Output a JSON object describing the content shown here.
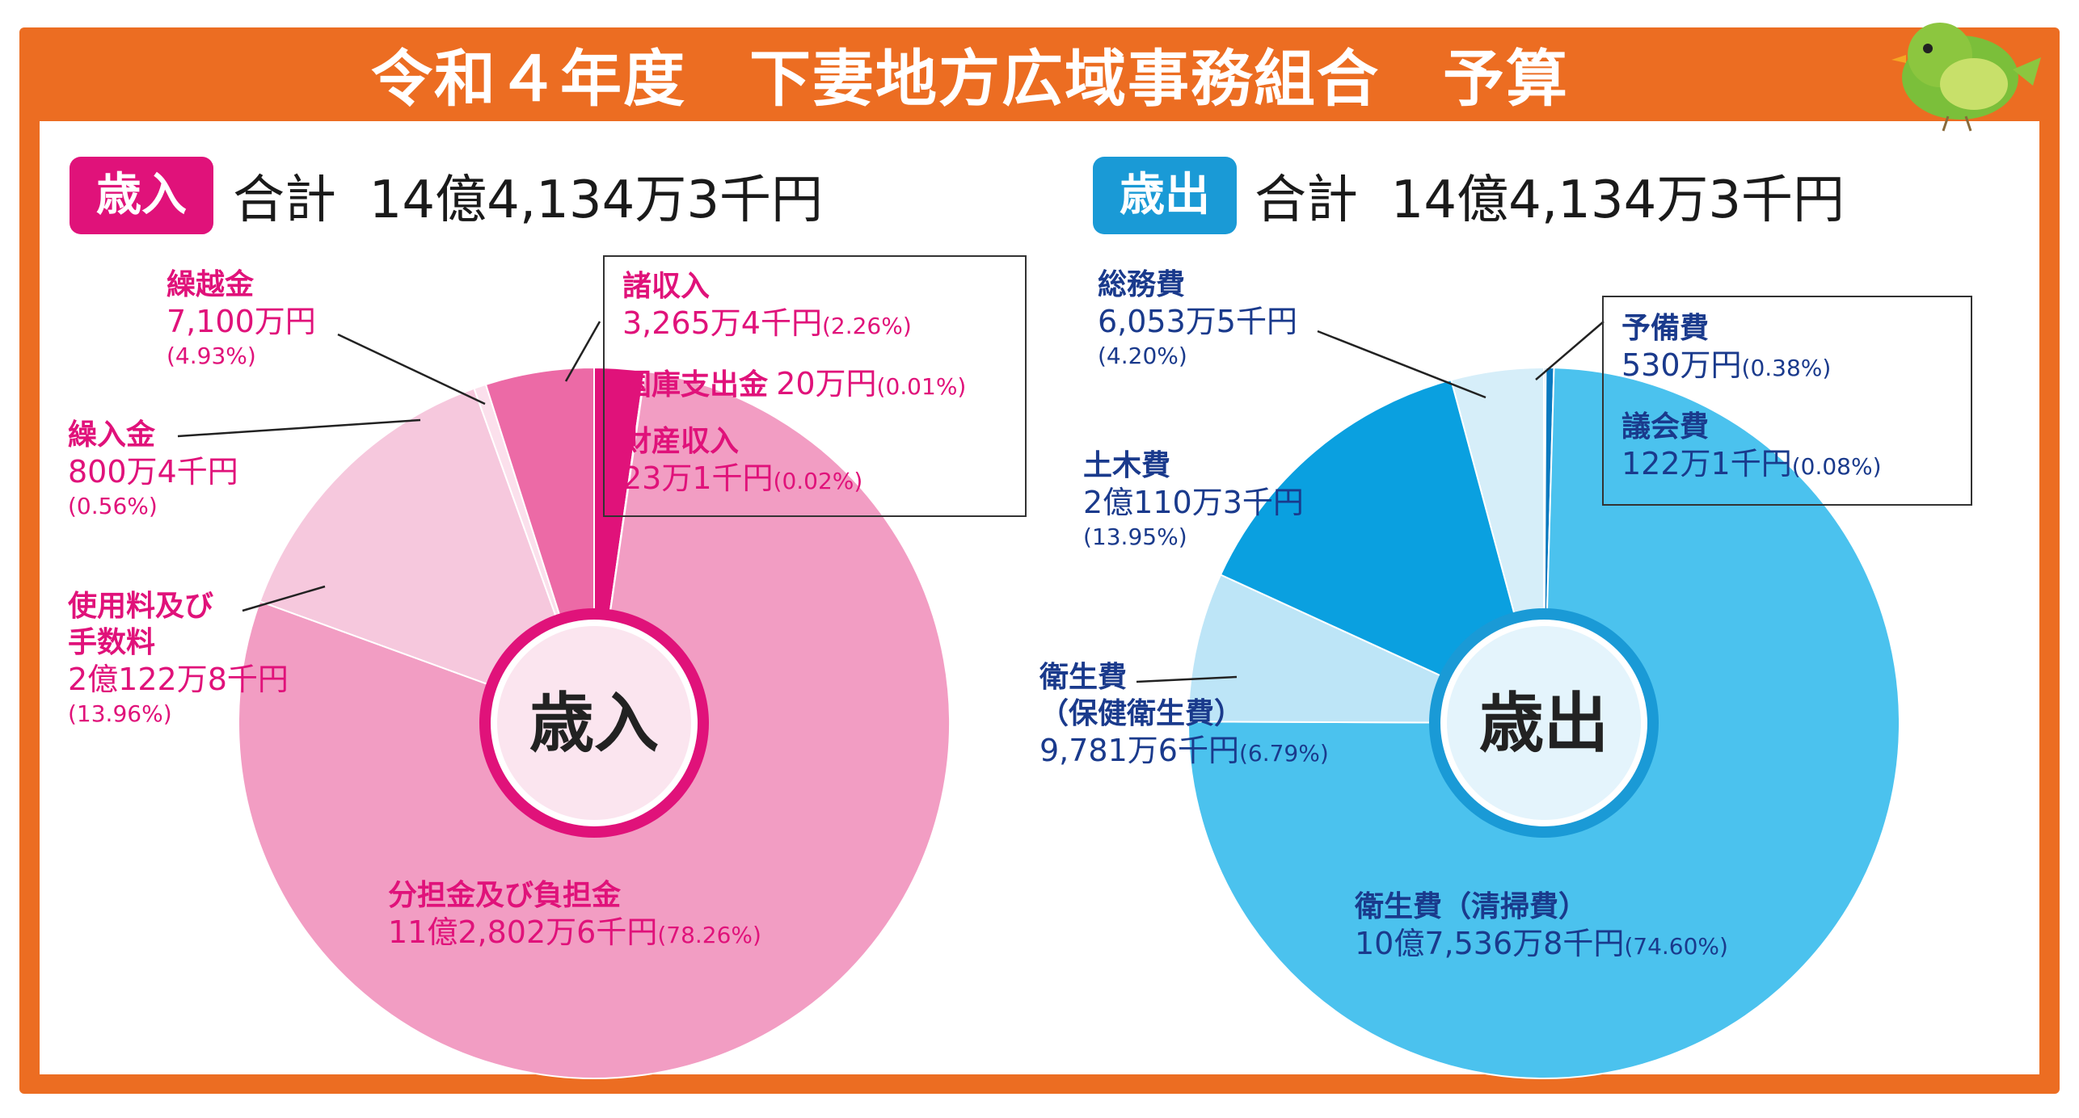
{
  "title": "令和４年度　下妻地方広域事務組合　予算",
  "colors": {
    "frame": "#ec6d22",
    "revenue_accent": "#e0127a",
    "expense_accent": "#1a9ad6"
  },
  "revenue": {
    "tag": "歳入",
    "total": "合計  14億4,134万3千円",
    "center": "歳入",
    "labels": {
      "kurikoshi": {
        "name": "繰越金",
        "value": "7,100万円",
        "pct": "(4.93%)"
      },
      "kurinyu": {
        "name": "繰入金",
        "value": "800万4千円",
        "pct": "(0.56%)"
      },
      "shiyoryo": {
        "name": "使用料及び",
        "name2": "手数料",
        "value": "2億122万8千円",
        "pct": "(13.96%)"
      },
      "shoshunyu": {
        "name": "諸収入",
        "value": "3,265万4千円",
        "pct": "(2.26%)"
      },
      "kokko": {
        "name": "国庫支出金",
        "value": "20万円",
        "pct": "(0.01%)"
      },
      "zaisan": {
        "name": "財産収入",
        "value": "23万1千円",
        "pct": "(0.02%)"
      },
      "buntan": {
        "name": "分担金及び負担金",
        "value": "11億2,802万6千円",
        "pct": "(78.26%)"
      }
    }
  },
  "expense": {
    "tag": "歳出",
    "total": "合計  14億4,134万3千円",
    "center": "歳出",
    "labels": {
      "somu": {
        "name": "総務費",
        "value": "6,053万5千円",
        "pct": "(4.20%)"
      },
      "yobi": {
        "name": "予備費",
        "value": "530万円",
        "pct": "(0.38%)"
      },
      "gikai": {
        "name": "議会費",
        "value": "122万1千円",
        "pct": "(0.08%)"
      },
      "doboku": {
        "name": "土木費",
        "value": "2億110万3千円",
        "pct": "(13.95%)"
      },
      "hoken": {
        "name": "衛生費",
        "name2": "（保健衛生費）",
        "value": "9,781万6千円",
        "pct": "(6.79%)"
      },
      "seiso": {
        "name": "衛生費（清掃費）",
        "value": "10億7,536万8千円",
        "pct": "(74.60%)"
      }
    }
  },
  "chart_data": [
    {
      "type": "pie",
      "title": "歳入",
      "unit": "千円",
      "categories": [
        "諸収入",
        "国庫支出金",
        "財産収入",
        "分担金及び負担金",
        "使用料及び手数料",
        "繰入金",
        "繰越金"
      ],
      "values": [
        32654,
        200,
        231,
        1128026,
        201228,
        8004,
        71000
      ],
      "percents": [
        2.26,
        0.01,
        0.02,
        78.26,
        13.96,
        0.56,
        4.93
      ],
      "colors": [
        "#e0127a",
        "#e0127a",
        "#e0127a",
        "#f29dc3",
        "#f6c8dd",
        "#fbe0ec",
        "#ec6aa6"
      ]
    },
    {
      "type": "pie",
      "title": "歳出",
      "unit": "千円",
      "categories": [
        "議会費",
        "予備費",
        "衛生費（清掃費）",
        "衛生費（保健衛生費）",
        "土木費",
        "総務費"
      ],
      "values": [
        1221,
        5300,
        1075368,
        97816,
        201103,
        60535
      ],
      "percents": [
        0.08,
        0.38,
        74.6,
        6.79,
        13.95,
        4.2
      ],
      "colors": [
        "#0a79bf",
        "#0a79bf",
        "#4bc2ee",
        "#bde5f7",
        "#0aa0e0",
        "#d6eef9"
      ]
    }
  ]
}
